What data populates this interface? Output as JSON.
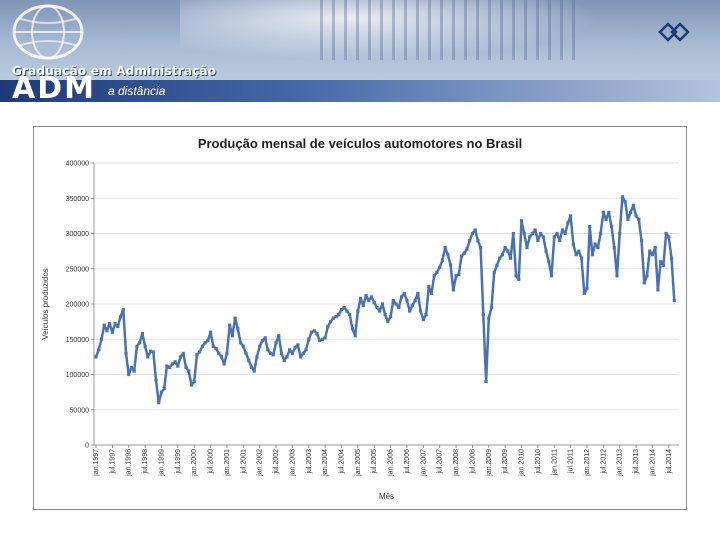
{
  "header": {
    "title": "Graduação em Administração",
    "logo_text": "ADM",
    "subtitle": "a distância",
    "icon_left": "globe-icon",
    "icon_right": "diamond-logo-icon"
  },
  "colors": {
    "series_line": "#4a72b0",
    "grid": "#d9d9d9",
    "header_dark": "#1e3a78"
  },
  "chart_data": {
    "type": "line",
    "title": "Produção mensal de veículos automotores no Brasil",
    "xlabel": "Mês",
    "ylabel": "Veículos produzidos",
    "ylim": [
      0,
      400000
    ],
    "y_ticks": [
      0,
      50000,
      100000,
      150000,
      200000,
      250000,
      300000,
      350000,
      400000
    ],
    "y_tick_labels": [
      "0",
      "50000",
      "100000",
      "150000",
      "200000",
      "250000",
      "300000",
      "350000",
      "400000"
    ],
    "grid": "horizontal",
    "legend": "none",
    "x_tick_labels": [
      "jan.1997",
      "jul.1997",
      "jan.1998",
      "jul.1998",
      "jan.1999",
      "jul.1999",
      "jan.2000",
      "jul.2000",
      "jan.2001",
      "jul.2001",
      "jan.2002",
      "jul.2002",
      "jan.2003",
      "jul.2003",
      "jan.2004",
      "jul.2004",
      "jan.2005",
      "jul.2005",
      "jan.2006",
      "jul.2006",
      "jan.2007",
      "jul.2007",
      "jan.2008",
      "jul.2008",
      "jan.2009",
      "jul.2009",
      "jan.2010",
      "jul.2010",
      "jan.2011",
      "jul.2011",
      "jan.2012",
      "jul.2012",
      "jan.2013",
      "jul.2013",
      "jan.2014",
      "jul.2014"
    ],
    "series": [
      {
        "x_start": "1997-01",
        "frequency": "monthly",
        "values": [
          125000,
          135000,
          150000,
          170000,
          162000,
          172000,
          160000,
          172000,
          168000,
          182000,
          192000,
          130000,
          100000,
          110000,
          105000,
          140000,
          145000,
          158000,
          140000,
          125000,
          133000,
          132000,
          92000,
          60000,
          75000,
          80000,
          112000,
          110000,
          115000,
          118000,
          112000,
          125000,
          130000,
          110000,
          105000,
          85000,
          90000,
          128000,
          132000,
          140000,
          145000,
          148000,
          160000,
          140000,
          137000,
          130000,
          125000,
          115000,
          130000,
          170000,
          155000,
          180000,
          165000,
          145000,
          140000,
          130000,
          120000,
          110000,
          105000,
          125000,
          140000,
          148000,
          152000,
          135000,
          130000,
          128000,
          145000,
          155000,
          130000,
          120000,
          125000,
          135000,
          130000,
          138000,
          142000,
          125000,
          130000,
          135000,
          150000,
          160000,
          162000,
          158000,
          148000,
          150000,
          152000,
          168000,
          175000,
          180000,
          182000,
          185000,
          192000,
          195000,
          190000,
          185000,
          165000,
          155000,
          190000,
          208000,
          198000,
          212000,
          205000,
          210000,
          202000,
          195000,
          190000,
          200000,
          185000,
          175000,
          182000,
          205000,
          200000,
          195000,
          210000,
          215000,
          205000,
          190000,
          198000,
          205000,
          215000,
          190000,
          178000,
          185000,
          225000,
          215000,
          240000,
          245000,
          252000,
          262000,
          280000,
          270000,
          255000,
          220000,
          240000,
          242000,
          268000,
          272000,
          278000,
          290000,
          300000,
          305000,
          290000,
          280000,
          185000,
          90000,
          180000,
          195000,
          245000,
          255000,
          265000,
          270000,
          280000,
          275000,
          265000,
          300000,
          240000,
          235000,
          318000,
          300000,
          280000,
          295000,
          300000,
          305000,
          290000,
          300000,
          295000,
          275000,
          260000,
          240000,
          295000,
          300000,
          290000,
          305000,
          300000,
          315000,
          325000,
          285000,
          270000,
          275000,
          265000,
          215000,
          222000,
          310000,
          270000,
          285000,
          280000,
          300000,
          330000,
          320000,
          330000,
          310000,
          280000,
          240000,
          300000,
          352000,
          345000,
          320000,
          330000,
          340000,
          325000,
          320000,
          290000,
          230000,
          240000,
          275000,
          270000,
          280000,
          220000,
          260000,
          255000,
          300000,
          295000,
          265000,
          205000
        ]
      }
    ]
  }
}
